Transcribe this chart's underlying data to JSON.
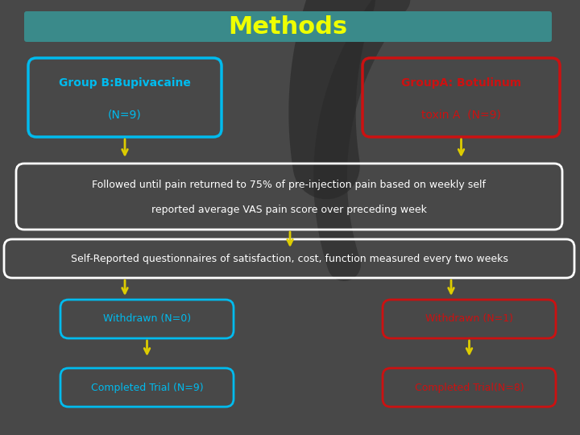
{
  "title": "Methods",
  "title_color": "#EEFF00",
  "title_bg_color": "#3A8A8A",
  "background_color": "#484848",
  "arrow_color": "#DDCC00",
  "white_box_border_color": "#FFFFFF",
  "white_text_color": "#FFFFFF",
  "group_b_border_color": "#00BBEE",
  "group_b_text_color": "#00BBEE",
  "group_a_border_color": "#CC1111",
  "group_a_text_color": "#CC1111",
  "group_b_line1": "Group B:Bupivacaine",
  "group_b_line2": "(N=9)",
  "group_a_line1": "GroupA: Botulinum",
  "group_a_line2": "toxin A  (N=9)",
  "followed_line1": "Followed until pain returned to 75% of pre-injection pain based on weekly self",
  "followed_line2": "reported average VAS pain score over preceding week",
  "self_reported": "Self-Reported questionnaires of satisfaction, cost, function measured every two weeks",
  "withdrawn_b": "Withdrawn (N=0)",
  "completed_b": "Completed Trial (N=9)",
  "withdrawn_a": "Withdrawn (N=1)",
  "completed_a": "Completed Trial(N=8)",
  "curve_color": "#3A3A3A"
}
